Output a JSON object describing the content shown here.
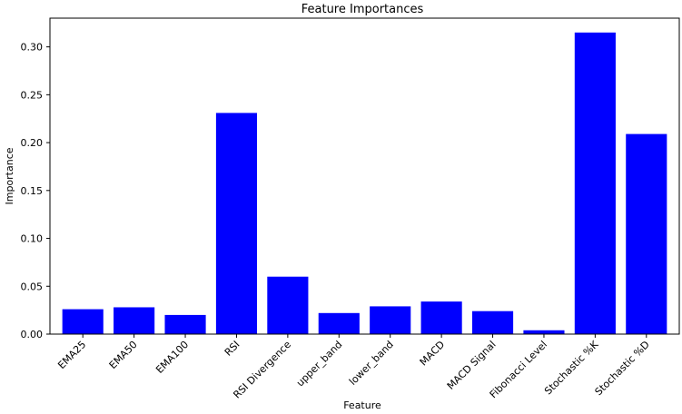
{
  "chart_data": {
    "type": "bar",
    "title": "Feature Importances",
    "xlabel": "Feature",
    "ylabel": "Importance",
    "categories": [
      "EMA25",
      "EMA50",
      "EMA100",
      "RSI",
      "RSI Divergence",
      "upper_band",
      "lower_band",
      "MACD",
      "MACD Signal",
      "Fibonacci Level",
      "Stochastic %K",
      "Stochastic %D"
    ],
    "values": [
      0.026,
      0.028,
      0.02,
      0.231,
      0.06,
      0.022,
      0.029,
      0.034,
      0.024,
      0.004,
      0.315,
      0.209
    ],
    "ylim": [
      0,
      0.33
    ],
    "yticks": [
      0.0,
      0.05,
      0.1,
      0.15,
      0.2,
      0.25,
      0.3
    ],
    "ytick_labels": [
      "0.00",
      "0.05",
      "0.10",
      "0.15",
      "0.20",
      "0.25",
      "0.30"
    ],
    "bar_color": "#0000ff",
    "grid": false,
    "legend": "none"
  }
}
